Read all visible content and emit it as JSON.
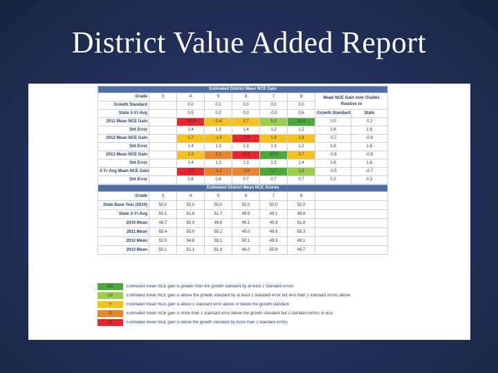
{
  "slide_title": "District Value Added Report",
  "table1": {
    "header": "Estimated District Mean NCE Gain",
    "grade_label": "Grade",
    "grades": [
      "3",
      "4",
      "5",
      "6",
      "7",
      "8"
    ],
    "side_header": "Mean NCE Gain over Grades Relative to",
    "rows": [
      {
        "label": "Growth Standard",
        "cells": [
          "",
          "0.0",
          "0.0",
          "0.0",
          "0.0",
          "0.0"
        ],
        "colors": [
          "",
          "",
          "",
          "",
          "",
          ""
        ],
        "side": [
          "",
          ""
        ]
      },
      {
        "label": "State 3-Yr-Avg",
        "cells": [
          "",
          "0.5",
          "0.0",
          "0.0",
          "-0.5",
          "0.6"
        ],
        "colors": [
          "",
          "",
          "",
          "",
          "",
          ""
        ],
        "side": [
          "Growth Standard",
          "State"
        ]
      },
      {
        "label": "2011 Mean NCE Gain",
        "cells": [
          "",
          "-10.8",
          "-0.4",
          "1.7",
          "5.3",
          "10.0"
        ],
        "colors": [
          "",
          "#e8262b",
          "#f7c21b",
          "#f7c21b",
          "#9fcf4a",
          "#4fa83a"
        ],
        "side": [
          "0.0",
          "0.2"
        ]
      },
      {
        "label": "Std Error",
        "cells": [
          "",
          "1.4",
          "1.3",
          "1.4",
          "1.2",
          "1.2"
        ],
        "colors": [
          "",
          "",
          "",
          "",
          "",
          ""
        ],
        "side": [
          "1.6",
          "1.6"
        ]
      },
      {
        "label": "2012 Mean NCE Gain",
        "cells": [
          "",
          "1.7",
          "-1.9",
          "-2.9",
          "1.9",
          "1.9"
        ],
        "colors": [
          "",
          "#f7c21b",
          "#f7c21b",
          "#e8262b",
          "#f7c21b",
          "#f7c21b"
        ],
        "side": [
          "-0.7",
          "-0.8"
        ]
      },
      {
        "label": "Std Error",
        "cells": [
          "",
          "1.4",
          "1.3",
          "1.3",
          "1.3",
          "1.2"
        ],
        "colors": [
          "",
          "",
          "",
          "",
          "",
          ""
        ],
        "side": [
          "1.6",
          "1.6"
        ]
      },
      {
        "label": "2013 Mean NCE Gain",
        "cells": [
          "",
          "1.3",
          "2.1",
          "-3.4",
          "10.5",
          "3.7"
        ],
        "colors": [
          "",
          "#f7c21b",
          "#e9852c",
          "#e8262b",
          "#4fa83a",
          "#f7c21b"
        ],
        "side": [
          "-0.8",
          "-0.8"
        ]
      },
      {
        "label": "Std Error",
        "cells": [
          "",
          "1.4",
          "1.3",
          "1.3",
          "1.3",
          "1.4"
        ],
        "colors": [
          "",
          "",
          "",
          "",
          "",
          ""
        ],
        "side": [
          "1.6",
          "1.6"
        ]
      },
      {
        "label": "3-Yr-Avg Mean NCE Gain",
        "cells": [
          "",
          "-2.5",
          "-1.1",
          "-1.0",
          "1.7",
          "1.5"
        ],
        "colors": [
          "",
          "#e8262b",
          "#e9852c",
          "#e9852c",
          "#4fa83a",
          "#9fcf4a"
        ],
        "side": [
          "-0.5",
          "-0.7"
        ]
      },
      {
        "label": "Std Error",
        "cells": [
          "",
          "0.8",
          "0.8",
          "0.7",
          "0.7",
          "0.7"
        ],
        "colors": [
          "",
          "",
          "",
          "",
          "",
          ""
        ],
        "side": [
          "0.2",
          "0.3"
        ]
      }
    ]
  },
  "table2": {
    "header": "Estimated District Mean NCE Scores",
    "grade_label": "Grade",
    "grades": [
      "3",
      "4",
      "5",
      "6",
      "7",
      "8"
    ],
    "rows": [
      {
        "label": "State Base Year (2010)",
        "cells": [
          "50.0",
          "50.0",
          "50.0",
          "50.0",
          "50.0",
          "50.0"
        ]
      },
      {
        "label": "State 3-Yr-Avg",
        "cells": [
          "50.1",
          "51.6",
          "51.7",
          "49.9",
          "49.1",
          "49.8"
        ]
      },
      {
        "label": "2010 Mean",
        "cells": [
          "49.7",
          "50.9",
          "49.6",
          "49.1",
          "49.9",
          "51.8"
        ]
      },
      {
        "label": "2011 Mean",
        "cells": [
          "55.4",
          "55.0",
          "55.2",
          "49.0",
          "49.9",
          "55.3"
        ]
      },
      {
        "label": "2012 Mean",
        "cells": [
          "52.0",
          "54.8",
          "55.1",
          "50.1",
          "49.3",
          "49.1"
        ]
      },
      {
        "label": "2013 Mean",
        "cells": [
          "50.1",
          "51.1",
          "51.6",
          "46.0",
          "55.9",
          "49.7"
        ]
      }
    ]
  },
  "legend": [
    {
      "code": "DG",
      "color": "#4fa83a",
      "text": "Estimated mean NCE gain is greater than the growth standard by at least 2 standard errors"
    },
    {
      "code": "LG",
      "color": "#9fcf4a",
      "text": "Estimated mean NCE gain is above the growth standard by at least 1 standard error but less than 2 standard errors above"
    },
    {
      "code": "Y",
      "color": "#f7c21b",
      "text": "Estimated mean NCE gain is about 1 standard error above or below the growth standard"
    },
    {
      "code": "O",
      "color": "#e9852c",
      "text": "Estimated mean NCE gain is more than 1 standard error below the growth standard but 2 standard errors or less"
    },
    {
      "code": "R",
      "color": "#e8262b",
      "text": "Estimated mean NCE gain is below the growth standard by more than 2 standard errors"
    }
  ]
}
